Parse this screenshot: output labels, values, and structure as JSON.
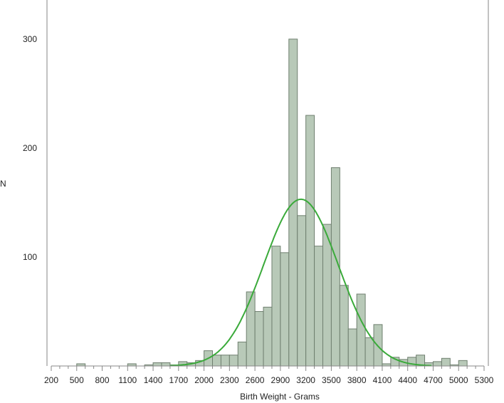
{
  "chart_data": {
    "type": "bar",
    "subtype": "histogram",
    "xlabel": "Birth Weight - Grams",
    "ylabel": "N",
    "xlim": [
      200,
      5300
    ],
    "ylim": [
      0,
      330
    ],
    "x_ticks": [
      200,
      500,
      800,
      1100,
      1400,
      1700,
      2000,
      2300,
      2600,
      2900,
      3200,
      3500,
      3800,
      4100,
      4400,
      4700,
      5000,
      5300
    ],
    "x_minor_step": 100,
    "y_ticks": [
      100,
      200,
      300
    ],
    "grid": false,
    "bin_width": 100,
    "bins": [
      {
        "x": 500,
        "n": 2
      },
      {
        "x": 1100,
        "n": 2
      },
      {
        "x": 1300,
        "n": 1
      },
      {
        "x": 1400,
        "n": 3
      },
      {
        "x": 1500,
        "n": 3
      },
      {
        "x": 1600,
        "n": 1
      },
      {
        "x": 1700,
        "n": 4
      },
      {
        "x": 1800,
        "n": 3
      },
      {
        "x": 1900,
        "n": 5
      },
      {
        "x": 2000,
        "n": 14
      },
      {
        "x": 2100,
        "n": 10
      },
      {
        "x": 2200,
        "n": 10
      },
      {
        "x": 2300,
        "n": 10
      },
      {
        "x": 2400,
        "n": 22
      },
      {
        "x": 2500,
        "n": 68
      },
      {
        "x": 2600,
        "n": 50
      },
      {
        "x": 2700,
        "n": 54
      },
      {
        "x": 2800,
        "n": 110
      },
      {
        "x": 2900,
        "n": 104
      },
      {
        "x": 3000,
        "n": 300
      },
      {
        "x": 3100,
        "n": 138
      },
      {
        "x": 3200,
        "n": 230
      },
      {
        "x": 3300,
        "n": 110
      },
      {
        "x": 3400,
        "n": 130
      },
      {
        "x": 3500,
        "n": 182
      },
      {
        "x": 3600,
        "n": 74
      },
      {
        "x": 3700,
        "n": 34
      },
      {
        "x": 3800,
        "n": 66
      },
      {
        "x": 3900,
        "n": 26
      },
      {
        "x": 4000,
        "n": 38
      },
      {
        "x": 4100,
        "n": 2
      },
      {
        "x": 4200,
        "n": 8
      },
      {
        "x": 4300,
        "n": 6
      },
      {
        "x": 4400,
        "n": 8
      },
      {
        "x": 4500,
        "n": 10
      },
      {
        "x": 4600,
        "n": 3
      },
      {
        "x": 4700,
        "n": 4
      },
      {
        "x": 4800,
        "n": 7
      },
      {
        "x": 4900,
        "n": 1
      },
      {
        "x": 5000,
        "n": 5
      }
    ],
    "normal_curve": {
      "mean": 3142,
      "sd": 440,
      "peak": 153
    },
    "colors": {
      "bar_fill": "#b8c9b8",
      "bar_stroke": "#6f7f6f",
      "curve": "#3aaa3a",
      "axis": "#888888",
      "frame": "#9a9a9a"
    }
  }
}
